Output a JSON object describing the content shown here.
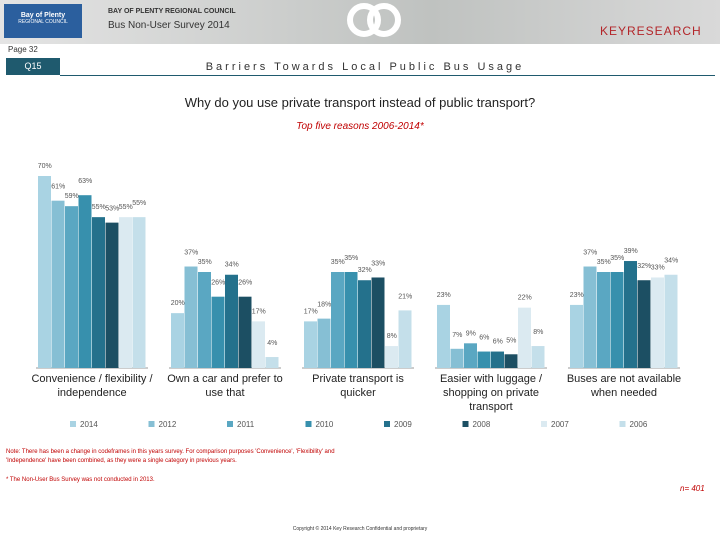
{
  "header": {
    "org": "BAY OF PLENTY REGIONAL COUNCIL",
    "survey": "Bus Non-User Survey 2014",
    "logo_title": "Bay of Plenty",
    "logo_subtitle": "REGIONAL COUNCIL",
    "brand": "KEYRESEARCH",
    "page": "Page 32",
    "question": "Q15",
    "section": "Barriers Towards Local Public Bus Usage"
  },
  "chart_data": {
    "type": "bar",
    "title": "Why do you use private transport instead of public transport?",
    "subtitle": "Top five reasons 2006-2014*",
    "categories": [
      "Convenience / flexibility / independence",
      "Own a car and prefer to use that",
      "Private transport is quicker",
      "Easier with luggage / shopping on private transport",
      "Buses are not available when needed"
    ],
    "ylim": [
      0,
      70
    ],
    "series": [
      {
        "name": "2014",
        "color": "#a9d3e3",
        "values": [
          70,
          20,
          17,
          23,
          23
        ],
        "value_labels": [
          "70%",
          "20%",
          "17%",
          "23%",
          "23%"
        ]
      },
      {
        "name": "2012",
        "color": "#86bfd4",
        "values": [
          61,
          37,
          18,
          7,
          37
        ],
        "value_labels": [
          "61%",
          "37%",
          "18%",
          "7%",
          "37%"
        ]
      },
      {
        "name": "2011",
        "color": "#5aa7c2",
        "values": [
          59,
          35,
          35,
          9,
          35
        ],
        "value_labels": [
          "59%",
          "35%",
          "35%",
          "9%",
          "35%"
        ]
      },
      {
        "name": "2010",
        "color": "#3790ad",
        "values": [
          63,
          26,
          35,
          6,
          35
        ],
        "value_labels": [
          "63%",
          "26%",
          "35%",
          "6%",
          "35%"
        ]
      },
      {
        "name": "2009",
        "color": "#24718c",
        "values": [
          55,
          34,
          32,
          6,
          39
        ],
        "value_labels": [
          "55%",
          "34%",
          "32%",
          "6%",
          "39%"
        ]
      },
      {
        "name": "2008",
        "color": "#1c4f63",
        "values": [
          53,
          26,
          33,
          5,
          32
        ],
        "value_labels": [
          "53%",
          "26%",
          "33%",
          "5%",
          "32%"
        ]
      },
      {
        "name": "2007",
        "color": "#dbeaf1",
        "values": [
          55,
          17,
          8,
          22,
          33
        ],
        "value_labels": [
          "55%",
          "17%",
          "8%",
          "22%",
          "33%"
        ]
      },
      {
        "name": "2006",
        "color": "#c4dfea",
        "values": [
          55,
          4,
          21,
          8,
          34
        ],
        "value_labels": [
          "55%",
          "4%",
          "21%",
          "8%",
          "34%"
        ]
      }
    ]
  },
  "notes": {
    "change": "Note: There has been a change in codeframes in this years survey. For comparison purposes 'Convenience', 'Flexibility' and 'Independence' have been combined, as they were a single category in previous years.",
    "footnote": "* The Non-User Bus Survey was not conducted in 2013.",
    "sample": "n= 401",
    "copyright": "Copyright © 2014 Key Research Confidential and proprietary"
  }
}
